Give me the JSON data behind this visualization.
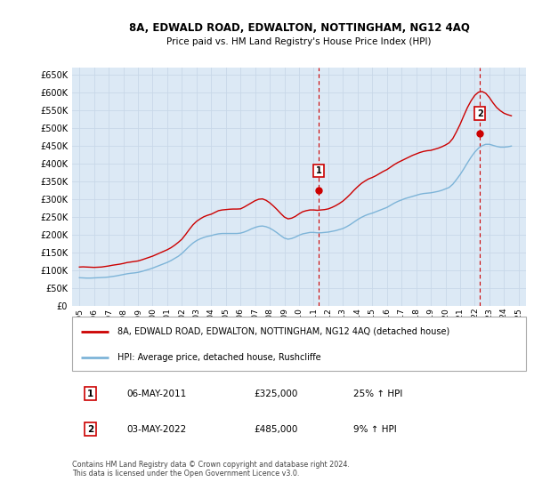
{
  "title": "8A, EDWALD ROAD, EDWALTON, NOTTINGHAM, NG12 4AQ",
  "subtitle": "Price paid vs. HM Land Registry's House Price Index (HPI)",
  "background_color": "#dce9f5",
  "plot_background": "#dce9f5",
  "grid_color": "#c8d8e8",
  "hpi_color": "#7db4d8",
  "price_color": "#cc0000",
  "vline_color": "#cc0000",
  "annotation1": {
    "label": "1",
    "date_x": 2011.35,
    "price": 325000,
    "text": "06-MAY-2011",
    "amount": "£325,000",
    "pct": "25% ↑ HPI"
  },
  "annotation2": {
    "label": "2",
    "date_x": 2022.35,
    "price": 485000,
    "text": "03-MAY-2022",
    "amount": "£485,000",
    "pct": "9% ↑ HPI"
  },
  "ylim": [
    0,
    670000
  ],
  "xlim": [
    1994.5,
    2025.5
  ],
  "yticks": [
    0,
    50000,
    100000,
    150000,
    200000,
    250000,
    300000,
    350000,
    400000,
    450000,
    500000,
    550000,
    600000,
    650000
  ],
  "xticks": [
    1995,
    1996,
    1997,
    1998,
    1999,
    2000,
    2001,
    2002,
    2003,
    2004,
    2005,
    2006,
    2007,
    2008,
    2009,
    2010,
    2011,
    2012,
    2013,
    2014,
    2015,
    2016,
    2017,
    2018,
    2019,
    2020,
    2021,
    2022,
    2023,
    2024,
    2025
  ],
  "legend_label_price": "8A, EDWALD ROAD, EDWALTON, NOTTINGHAM, NG12 4AQ (detached house)",
  "legend_label_hpi": "HPI: Average price, detached house, Rushcliffe",
  "footnote": "Contains HM Land Registry data © Crown copyright and database right 2024.\nThis data is licensed under the Open Government Licence v3.0.",
  "hpi_data": [
    [
      1995,
      80000
    ],
    [
      1995.25,
      79500
    ],
    [
      1995.5,
      79000
    ],
    [
      1995.75,
      79000
    ],
    [
      1996,
      79500
    ],
    [
      1996.25,
      80000
    ],
    [
      1996.5,
      80500
    ],
    [
      1996.75,
      81000
    ],
    [
      1997,
      82000
    ],
    [
      1997.25,
      83500
    ],
    [
      1997.5,
      85000
    ],
    [
      1997.75,
      87000
    ],
    [
      1998,
      89000
    ],
    [
      1998.25,
      91000
    ],
    [
      1998.5,
      92500
    ],
    [
      1998.75,
      93500
    ],
    [
      1999,
      95000
    ],
    [
      1999.25,
      97500
    ],
    [
      1999.5,
      100500
    ],
    [
      1999.75,
      103500
    ],
    [
      2000,
      107000
    ],
    [
      2000.25,
      111000
    ],
    [
      2000.5,
      115000
    ],
    [
      2000.75,
      119000
    ],
    [
      2001,
      123000
    ],
    [
      2001.25,
      128000
    ],
    [
      2001.5,
      134000
    ],
    [
      2001.75,
      140000
    ],
    [
      2002,
      148000
    ],
    [
      2002.25,
      158000
    ],
    [
      2002.5,
      168000
    ],
    [
      2002.75,
      177000
    ],
    [
      2003,
      184000
    ],
    [
      2003.25,
      189000
    ],
    [
      2003.5,
      193000
    ],
    [
      2003.75,
      196000
    ],
    [
      2004,
      198000
    ],
    [
      2004.25,
      201000
    ],
    [
      2004.5,
      203000
    ],
    [
      2004.75,
      204000
    ],
    [
      2005,
      204000
    ],
    [
      2005.25,
      204000
    ],
    [
      2005.5,
      204000
    ],
    [
      2005.75,
      204000
    ],
    [
      2006,
      205000
    ],
    [
      2006.25,
      208000
    ],
    [
      2006.5,
      212000
    ],
    [
      2006.75,
      217000
    ],
    [
      2007,
      221000
    ],
    [
      2007.25,
      224000
    ],
    [
      2007.5,
      225000
    ],
    [
      2007.75,
      223000
    ],
    [
      2008,
      219000
    ],
    [
      2008.25,
      213000
    ],
    [
      2008.5,
      206000
    ],
    [
      2008.75,
      198000
    ],
    [
      2009,
      191000
    ],
    [
      2009.25,
      188000
    ],
    [
      2009.5,
      190000
    ],
    [
      2009.75,
      194000
    ],
    [
      2010,
      199000
    ],
    [
      2010.25,
      203000
    ],
    [
      2010.5,
      205000
    ],
    [
      2010.75,
      207000
    ],
    [
      2011,
      207000
    ],
    [
      2011.25,
      206000
    ],
    [
      2011.5,
      206000
    ],
    [
      2011.75,
      207000
    ],
    [
      2012,
      208000
    ],
    [
      2012.25,
      210000
    ],
    [
      2012.5,
      212000
    ],
    [
      2012.75,
      215000
    ],
    [
      2013,
      218000
    ],
    [
      2013.25,
      223000
    ],
    [
      2013.5,
      229000
    ],
    [
      2013.75,
      236000
    ],
    [
      2014,
      243000
    ],
    [
      2014.25,
      249000
    ],
    [
      2014.5,
      254000
    ],
    [
      2014.75,
      258000
    ],
    [
      2015,
      261000
    ],
    [
      2015.25,
      265000
    ],
    [
      2015.5,
      269000
    ],
    [
      2015.75,
      273000
    ],
    [
      2016,
      277000
    ],
    [
      2016.25,
      283000
    ],
    [
      2016.5,
      289000
    ],
    [
      2016.75,
      294000
    ],
    [
      2017,
      298000
    ],
    [
      2017.25,
      302000
    ],
    [
      2017.5,
      305000
    ],
    [
      2017.75,
      308000
    ],
    [
      2018,
      311000
    ],
    [
      2018.25,
      314000
    ],
    [
      2018.5,
      316000
    ],
    [
      2018.75,
      317000
    ],
    [
      2019,
      318000
    ],
    [
      2019.25,
      320000
    ],
    [
      2019.5,
      322000
    ],
    [
      2019.75,
      325000
    ],
    [
      2020,
      329000
    ],
    [
      2020.25,
      333000
    ],
    [
      2020.5,
      342000
    ],
    [
      2020.75,
      355000
    ],
    [
      2021,
      369000
    ],
    [
      2021.25,
      385000
    ],
    [
      2021.5,
      402000
    ],
    [
      2021.75,
      418000
    ],
    [
      2022,
      432000
    ],
    [
      2022.25,
      443000
    ],
    [
      2022.5,
      450000
    ],
    [
      2022.75,
      454000
    ],
    [
      2023,
      454000
    ],
    [
      2023.25,
      451000
    ],
    [
      2023.5,
      448000
    ],
    [
      2023.75,
      446000
    ],
    [
      2024,
      446000
    ],
    [
      2024.25,
      447000
    ],
    [
      2024.5,
      449000
    ]
  ],
  "price_data": [
    [
      1995,
      110000
    ],
    [
      1995.25,
      110500
    ],
    [
      1995.5,
      110000
    ],
    [
      1995.75,
      109500
    ],
    [
      1996,
      109000
    ],
    [
      1996.25,
      109500
    ],
    [
      1996.5,
      110000
    ],
    [
      1996.75,
      111500
    ],
    [
      1997,
      113000
    ],
    [
      1997.25,
      115000
    ],
    [
      1997.5,
      116500
    ],
    [
      1997.75,
      118000
    ],
    [
      1998,
      120000
    ],
    [
      1998.25,
      122500
    ],
    [
      1998.5,
      124000
    ],
    [
      1998.75,
      125500
    ],
    [
      1999,
      127000
    ],
    [
      1999.25,
      130000
    ],
    [
      1999.5,
      133500
    ],
    [
      1999.75,
      137000
    ],
    [
      2000,
      140500
    ],
    [
      2000.25,
      145000
    ],
    [
      2000.5,
      149500
    ],
    [
      2000.75,
      154000
    ],
    [
      2001,
      158500
    ],
    [
      2001.25,
      164000
    ],
    [
      2001.5,
      171000
    ],
    [
      2001.75,
      179000
    ],
    [
      2002,
      188000
    ],
    [
      2002.25,
      201000
    ],
    [
      2002.5,
      215000
    ],
    [
      2002.75,
      228000
    ],
    [
      2003,
      238000
    ],
    [
      2003.25,
      245000
    ],
    [
      2003.5,
      251000
    ],
    [
      2003.75,
      255000
    ],
    [
      2004,
      258000
    ],
    [
      2004.25,
      263000
    ],
    [
      2004.5,
      268000
    ],
    [
      2004.75,
      270000
    ],
    [
      2005,
      271000
    ],
    [
      2005.25,
      272000
    ],
    [
      2005.5,
      272500
    ],
    [
      2005.75,
      272500
    ],
    [
      2006,
      273000
    ],
    [
      2006.25,
      278000
    ],
    [
      2006.5,
      284000
    ],
    [
      2006.75,
      290000
    ],
    [
      2007,
      296000
    ],
    [
      2007.25,
      300000
    ],
    [
      2007.5,
      301000
    ],
    [
      2007.75,
      297000
    ],
    [
      2008,
      290000
    ],
    [
      2008.25,
      281000
    ],
    [
      2008.5,
      271000
    ],
    [
      2008.75,
      260000
    ],
    [
      2009,
      250000
    ],
    [
      2009.25,
      245000
    ],
    [
      2009.5,
      247000
    ],
    [
      2009.75,
      252000
    ],
    [
      2010,
      259000
    ],
    [
      2010.25,
      265000
    ],
    [
      2010.5,
      268000
    ],
    [
      2010.75,
      270000
    ],
    [
      2011,
      270000
    ],
    [
      2011.25,
      269000
    ],
    [
      2011.5,
      270000
    ],
    [
      2011.75,
      271000
    ],
    [
      2012,
      273000
    ],
    [
      2012.25,
      277000
    ],
    [
      2012.5,
      282000
    ],
    [
      2012.75,
      288000
    ],
    [
      2013,
      295000
    ],
    [
      2013.25,
      304000
    ],
    [
      2013.5,
      314000
    ],
    [
      2013.75,
      325000
    ],
    [
      2014,
      335000
    ],
    [
      2014.25,
      344000
    ],
    [
      2014.5,
      351000
    ],
    [
      2014.75,
      357000
    ],
    [
      2015,
      361000
    ],
    [
      2015.25,
      366000
    ],
    [
      2015.5,
      372000
    ],
    [
      2015.75,
      378000
    ],
    [
      2016,
      383000
    ],
    [
      2016.25,
      390000
    ],
    [
      2016.5,
      397000
    ],
    [
      2016.75,
      403000
    ],
    [
      2017,
      408000
    ],
    [
      2017.25,
      413000
    ],
    [
      2017.5,
      418000
    ],
    [
      2017.75,
      423000
    ],
    [
      2018,
      427000
    ],
    [
      2018.25,
      431000
    ],
    [
      2018.5,
      434000
    ],
    [
      2018.75,
      436000
    ],
    [
      2019,
      437000
    ],
    [
      2019.25,
      440000
    ],
    [
      2019.5,
      443000
    ],
    [
      2019.75,
      447000
    ],
    [
      2020,
      452000
    ],
    [
      2020.25,
      458000
    ],
    [
      2020.5,
      470000
    ],
    [
      2020.75,
      489000
    ],
    [
      2021,
      510000
    ],
    [
      2021.25,
      534000
    ],
    [
      2021.5,
      557000
    ],
    [
      2021.75,
      576000
    ],
    [
      2022,
      591000
    ],
    [
      2022.25,
      600000
    ],
    [
      2022.5,
      602000
    ],
    [
      2022.75,
      597000
    ],
    [
      2023,
      585000
    ],
    [
      2023.25,
      570000
    ],
    [
      2023.5,
      557000
    ],
    [
      2023.75,
      548000
    ],
    [
      2024,
      541000
    ],
    [
      2024.25,
      537000
    ],
    [
      2024.5,
      534000
    ]
  ]
}
